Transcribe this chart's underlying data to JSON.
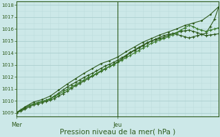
{
  "title": "",
  "xlabel": "Pression niveau de la mer( hPa )",
  "bg_color": "#cce8e8",
  "grid_color_major": "#aacece",
  "grid_color_minor": "#bcdcdc",
  "line_color": "#2d5a1b",
  "line_color2": "#3a7a2a",
  "ylim": [
    1008.7,
    1018.3
  ],
  "xlim": [
    0,
    48
  ],
  "x_ticks_pos": [
    0,
    24
  ],
  "x_tick_labels": [
    "Mer",
    "Jeu"
  ],
  "vline_x": 24,
  "y_ticks": [
    1009,
    1010,
    1011,
    1012,
    1013,
    1014,
    1015,
    1016,
    1017,
    1018
  ],
  "series1_x": [
    0,
    1,
    2,
    3,
    4,
    5,
    6,
    7,
    8,
    9,
    10,
    11,
    12,
    13,
    14,
    15,
    16,
    17,
    18,
    19,
    20,
    21,
    22,
    23,
    24,
    25,
    26,
    27,
    28,
    29,
    30,
    31,
    32,
    33,
    34,
    35,
    36,
    37,
    38,
    39,
    40,
    41,
    42,
    43,
    44,
    45,
    46,
    47,
    48
  ],
  "series1_y": [
    1009.0,
    1009.15,
    1009.3,
    1009.5,
    1009.65,
    1009.75,
    1009.85,
    1009.95,
    1010.05,
    1010.2,
    1010.4,
    1010.6,
    1010.8,
    1011.05,
    1011.25,
    1011.45,
    1011.65,
    1011.85,
    1012.05,
    1012.25,
    1012.45,
    1012.65,
    1012.85,
    1013.05,
    1013.25,
    1013.5,
    1013.75,
    1014.0,
    1014.2,
    1014.4,
    1014.6,
    1014.8,
    1015.0,
    1015.15,
    1015.3,
    1015.45,
    1015.55,
    1015.6,
    1015.55,
    1015.45,
    1015.35,
    1015.25,
    1015.35,
    1015.45,
    1015.55,
    1015.65,
    1016.2,
    1016.8,
    1017.8
  ],
  "series2_x": [
    0,
    1,
    2,
    3,
    4,
    5,
    6,
    7,
    8,
    9,
    10,
    11,
    12,
    13,
    14,
    15,
    16,
    17,
    18,
    19,
    20,
    21,
    22,
    23,
    24,
    25,
    26,
    27,
    28,
    29,
    30,
    31,
    32,
    33,
    34,
    35,
    36,
    37,
    38,
    39,
    40,
    41,
    42,
    43,
    44,
    45,
    46,
    47,
    48
  ],
  "series2_y": [
    1009.0,
    1009.2,
    1009.4,
    1009.6,
    1009.75,
    1009.85,
    1009.95,
    1010.05,
    1010.2,
    1010.4,
    1010.65,
    1010.9,
    1011.15,
    1011.35,
    1011.55,
    1011.75,
    1011.95,
    1012.15,
    1012.3,
    1012.5,
    1012.7,
    1012.9,
    1013.05,
    1013.2,
    1013.4,
    1013.6,
    1013.8,
    1014.05,
    1014.25,
    1014.45,
    1014.65,
    1014.85,
    1015.0,
    1015.1,
    1015.2,
    1015.3,
    1015.45,
    1015.6,
    1015.7,
    1015.8,
    1015.85,
    1015.9,
    1015.8,
    1015.7,
    1015.55,
    1015.45,
    1015.5,
    1015.55,
    1015.6
  ],
  "series3_x": [
    0,
    1,
    2,
    3,
    4,
    5,
    6,
    7,
    8,
    9,
    10,
    11,
    12,
    13,
    14,
    15,
    16,
    17,
    18,
    19,
    20,
    21,
    22,
    23,
    24,
    25,
    26,
    27,
    28,
    29,
    30,
    31,
    32,
    33,
    34,
    35,
    36,
    37,
    38,
    39,
    40,
    41,
    42,
    43,
    44,
    45,
    46,
    47,
    48
  ],
  "series3_y": [
    1009.05,
    1009.25,
    1009.45,
    1009.6,
    1009.75,
    1009.85,
    1009.95,
    1010.05,
    1010.15,
    1010.35,
    1010.55,
    1010.75,
    1010.95,
    1011.15,
    1011.35,
    1011.55,
    1011.75,
    1011.95,
    1012.1,
    1012.3,
    1012.5,
    1012.7,
    1012.85,
    1013.0,
    1013.2,
    1013.4,
    1013.6,
    1013.8,
    1014.0,
    1014.2,
    1014.4,
    1014.6,
    1014.8,
    1014.95,
    1015.1,
    1015.2,
    1015.35,
    1015.5,
    1015.7,
    1015.9,
    1016.1,
    1016.3,
    1016.2,
    1016.0,
    1015.9,
    1015.8,
    1015.9,
    1016.0,
    1016.1
  ],
  "series4_x": [
    0,
    2,
    4,
    6,
    8,
    10,
    12,
    14,
    16,
    18,
    20,
    22,
    24,
    26,
    28,
    30,
    32,
    34,
    36,
    38,
    40,
    42,
    44,
    46,
    48
  ],
  "series4_y": [
    1009.0,
    1009.5,
    1009.9,
    1010.1,
    1010.4,
    1010.9,
    1011.4,
    1011.85,
    1012.3,
    1012.7,
    1013.1,
    1013.35,
    1013.65,
    1014.1,
    1014.5,
    1014.9,
    1015.2,
    1015.5,
    1015.75,
    1016.0,
    1016.3,
    1016.5,
    1016.7,
    1017.2,
    1017.85
  ]
}
